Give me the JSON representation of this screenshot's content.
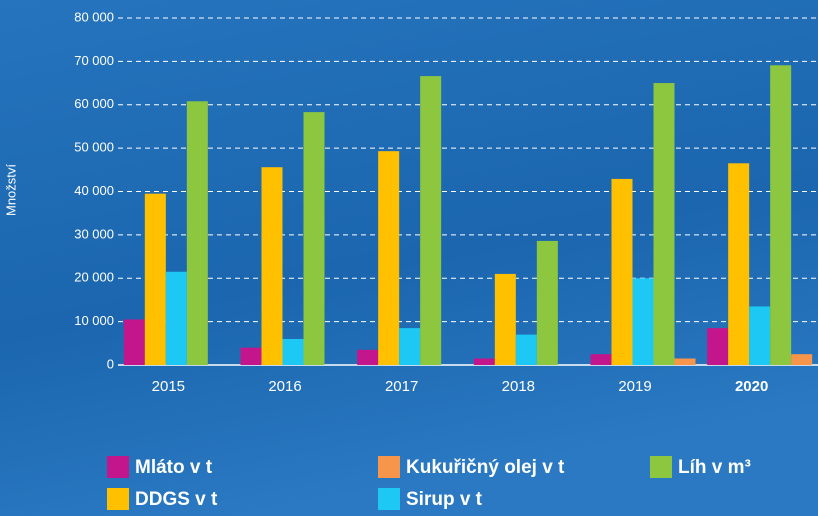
{
  "chart_data": {
    "type": "bar",
    "y_label": "Množství",
    "categories": [
      "2015",
      "2016",
      "2017",
      "2018",
      "2019",
      "2020"
    ],
    "series": [
      {
        "name": "Mláto v t",
        "color": "#c4168c",
        "values": [
          10500,
          4000,
          3500,
          1500,
          2500,
          8500
        ]
      },
      {
        "name": "DDGS v t",
        "color": "#ffc000",
        "values": [
          39500,
          45600,
          49300,
          21000,
          42900,
          46500
        ]
      },
      {
        "name": "Sirup v t",
        "color": "#1ec8f5",
        "values": [
          21500,
          6000,
          8500,
          7000,
          20000,
          13500
        ]
      },
      {
        "name": "Líh v m³",
        "color": "#8dc63f",
        "values": [
          60800,
          58300,
          66600,
          28600,
          65000,
          69100
        ]
      },
      {
        "name": "Kukuřičný olej v t",
        "color": "#f7964a",
        "values": [
          0,
          0,
          0,
          0,
          1500,
          2500
        ]
      }
    ],
    "ylim": [
      0,
      80000
    ],
    "yticks": [
      {
        "value": 0,
        "label": "0"
      },
      {
        "value": 10000,
        "label": "10 000"
      },
      {
        "value": 20000,
        "label": "20 000"
      },
      {
        "value": 30000,
        "label": "30 000"
      },
      {
        "value": 40000,
        "label": "40 000"
      },
      {
        "value": 50000,
        "label": "50 000"
      },
      {
        "value": 60000,
        "label": "60 000"
      },
      {
        "value": 70000,
        "label": "70 000"
      },
      {
        "value": 80000,
        "label": "80 000"
      }
    ],
    "grid": true
  }
}
